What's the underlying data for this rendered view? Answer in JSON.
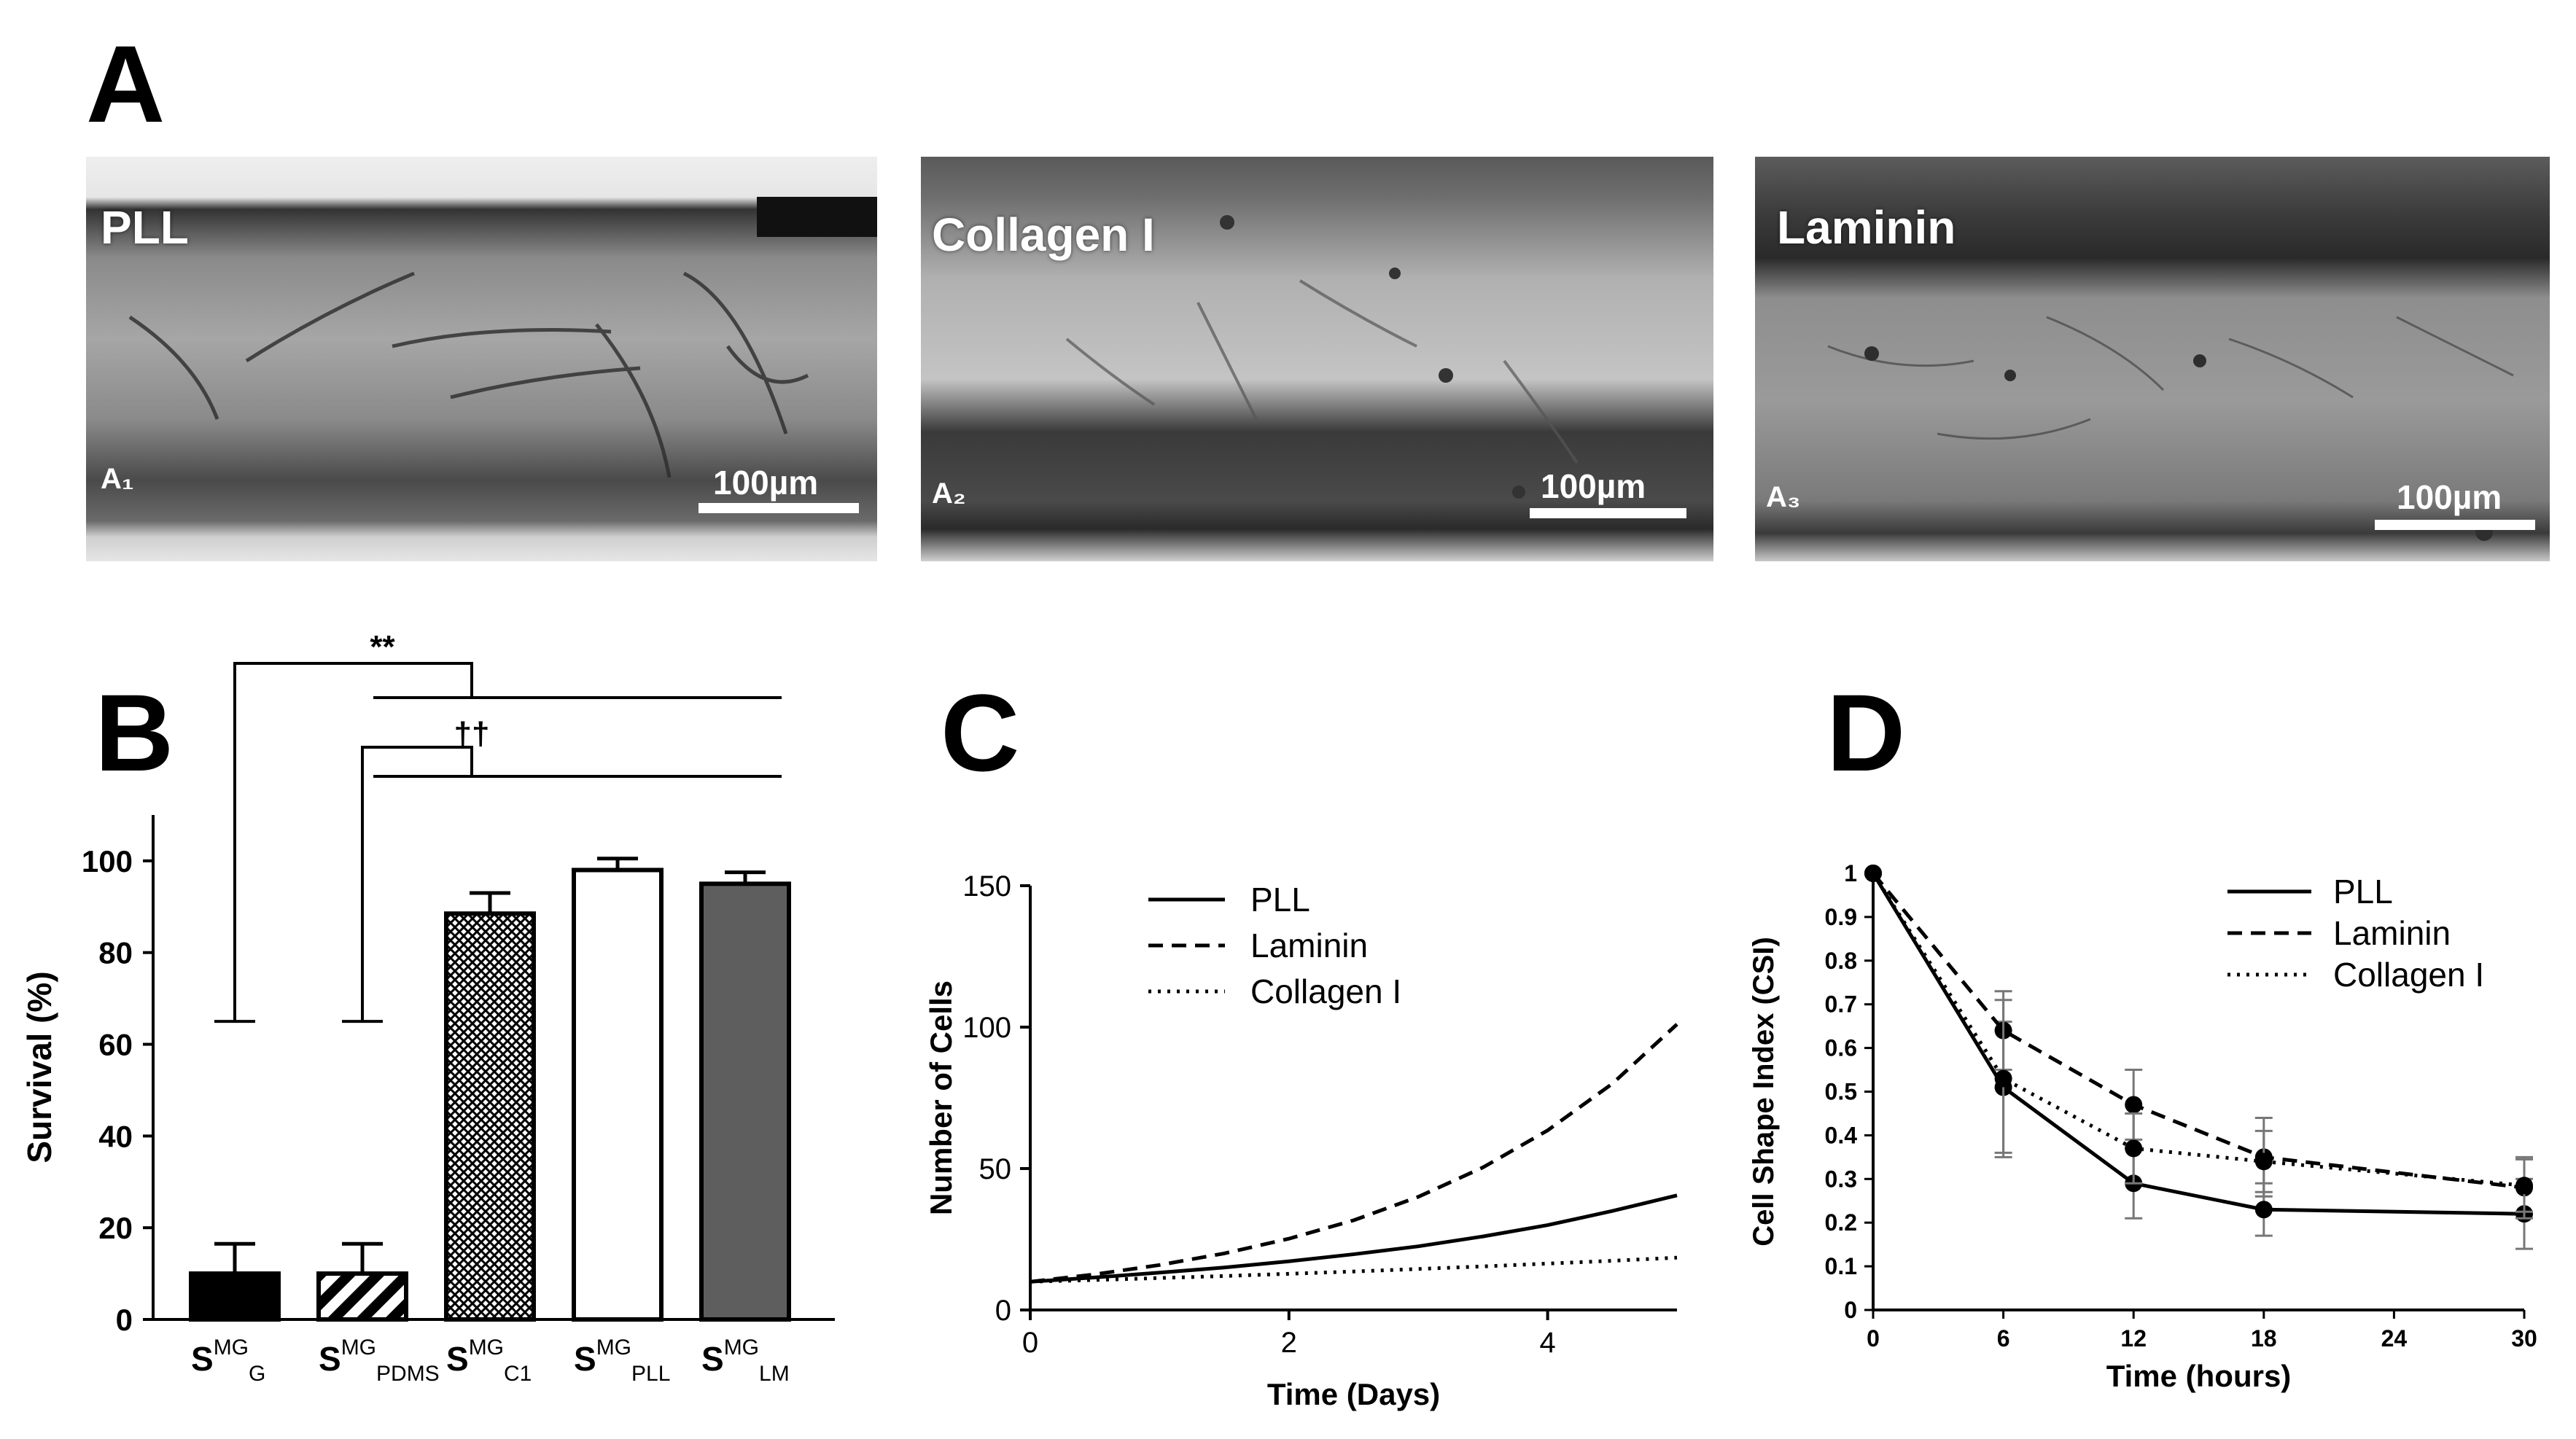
{
  "panels": {
    "A": "A",
    "B": "B",
    "C": "C",
    "D": "D"
  },
  "micrographs": [
    {
      "label": "PLL",
      "code": "A₁",
      "scale": "100µm"
    },
    {
      "label": "Collagen I",
      "code": "A₂",
      "scale": "100µm"
    },
    {
      "label": "Laminin",
      "code": "A₃",
      "scale": "100µm"
    }
  ],
  "chart_data": [
    {
      "panel": "B",
      "type": "bar",
      "ylabel": "Survival (%)",
      "ylim": [
        0,
        110
      ],
      "yticks": [
        0,
        20,
        40,
        60,
        80,
        100
      ],
      "categories": [
        {
          "base": "S",
          "sup": "MG",
          "sub": "G"
        },
        {
          "base": "S",
          "sup": "MG",
          "sub": "PDMS"
        },
        {
          "base": "S",
          "sup": "MG",
          "sub": "C1"
        },
        {
          "base": "S",
          "sup": "MG",
          "sub": "PLL"
        },
        {
          "base": "S",
          "sup": "MG",
          "sub": "LM"
        }
      ],
      "values": [
        10,
        10,
        88.5,
        98,
        95
      ],
      "errors": [
        6.5,
        6.5,
        4.5,
        2.5,
        2.5
      ],
      "bar_styles": [
        "solid-black",
        "diagonal-hatch",
        "crosshatch",
        "white",
        "dark-gray"
      ],
      "significance": [
        {
          "label": "**",
          "from_group": 0,
          "to_groups": [
            2,
            3,
            4
          ]
        },
        {
          "label": "††",
          "from_group": 1,
          "to_groups": [
            2,
            3,
            4
          ]
        }
      ]
    },
    {
      "panel": "C",
      "type": "line",
      "xlabel": "Time (Days)",
      "ylabel": "Number of Cells",
      "xlim": [
        0,
        5
      ],
      "ylim": [
        0,
        150
      ],
      "xticks": [
        0,
        2,
        4
      ],
      "yticks": [
        0,
        50,
        100,
        150
      ],
      "legend_position": "top-left",
      "series": [
        {
          "name": "PLL",
          "style": "solid",
          "x": [
            0,
            0.5,
            1,
            1.5,
            2,
            2.5,
            3,
            3.5,
            4,
            4.5,
            5
          ],
          "y": [
            10,
            11.5,
            13.2,
            15,
            17.2,
            19.7,
            22.5,
            26,
            30,
            35,
            40.5
          ]
        },
        {
          "name": "Laminin",
          "style": "dashed",
          "x": [
            0,
            0.5,
            1,
            1.5,
            2,
            2.5,
            3,
            3.5,
            4,
            4.5,
            5
          ],
          "y": [
            10,
            12.6,
            15.9,
            20,
            25.2,
            31.7,
            40,
            50.4,
            63.5,
            80,
            101
          ]
        },
        {
          "name": "Collagen I",
          "style": "dotted",
          "x": [
            0,
            0.5,
            1,
            1.5,
            2,
            2.5,
            3,
            3.5,
            4,
            4.5,
            5
          ],
          "y": [
            10,
            10.6,
            11.3,
            12,
            12.8,
            13.6,
            14.5,
            15.4,
            16.4,
            17.4,
            18.5
          ]
        }
      ]
    },
    {
      "panel": "D",
      "type": "line",
      "xlabel": "Time (hours)",
      "ylabel": "Cell Shape Index (CSI)",
      "xlim": [
        0,
        30
      ],
      "ylim": [
        0,
        1
      ],
      "xticks": [
        0,
        6,
        12,
        18,
        24,
        30
      ],
      "yticks": [
        0,
        0.1,
        0.2,
        0.3,
        0.4,
        0.5,
        0.6,
        0.7,
        0.8,
        0.9,
        1
      ],
      "legend_position": "top-right",
      "series": [
        {
          "name": "PLL",
          "style": "solid",
          "x": [
            0,
            6,
            12,
            18,
            30
          ],
          "y": [
            1,
            0.51,
            0.29,
            0.23,
            0.22
          ],
          "err": [
            0,
            0.15,
            0.08,
            0.06,
            0.08
          ]
        },
        {
          "name": "Laminin",
          "style": "dashed",
          "x": [
            0,
            6,
            12,
            18,
            30
          ],
          "y": [
            1,
            0.64,
            0.47,
            0.35,
            0.28
          ],
          "err": [
            0,
            0.09,
            0.08,
            0.09,
            0.07
          ]
        },
        {
          "name": "Collagen I",
          "style": "dotted",
          "x": [
            0,
            6,
            12,
            18,
            30
          ],
          "y": [
            1,
            0.53,
            0.37,
            0.34,
            0.285
          ],
          "err": [
            0,
            0.18,
            0.08,
            0.07,
            0.06
          ]
        }
      ]
    }
  ]
}
